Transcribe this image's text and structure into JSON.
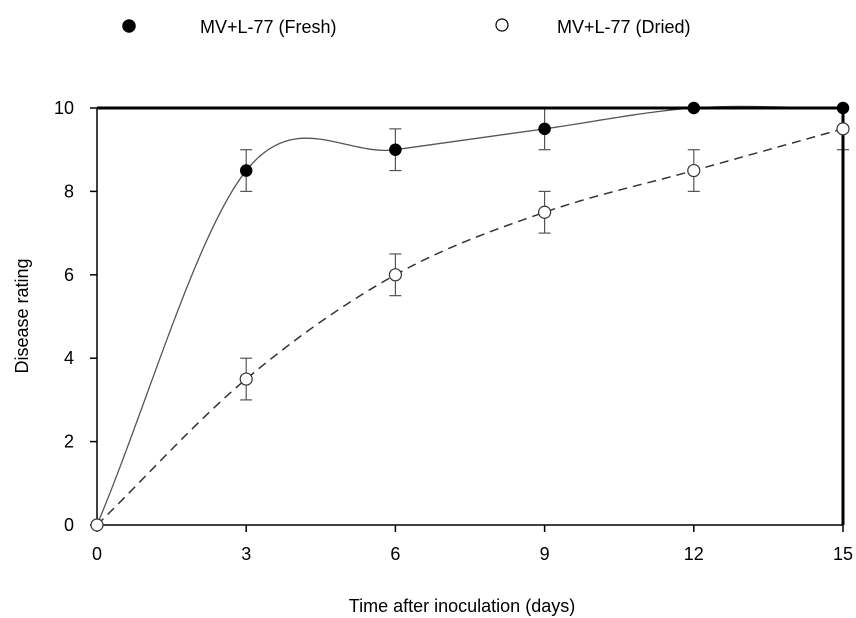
{
  "chart_data": {
    "type": "line",
    "xlabel": "Time after inoculation (days)",
    "ylabel": "Disease rating",
    "xlim": [
      0,
      15
    ],
    "ylim": [
      0,
      10
    ],
    "xticks": [
      0,
      3,
      6,
      9,
      12,
      15
    ],
    "yticks": [
      0,
      2,
      4,
      6,
      8,
      10
    ],
    "grid": false,
    "legend_position": "top",
    "series": [
      {
        "name": "MV+L-77 (Fresh)",
        "marker": "filled-circle",
        "line_style": "solid",
        "x": [
          0,
          3,
          6,
          9,
          12,
          15
        ],
        "y": [
          0,
          8.5,
          9.0,
          9.5,
          10.0,
          10.0
        ],
        "error": [
          0,
          0.5,
          0.5,
          0.5,
          0,
          0
        ]
      },
      {
        "name": "MV+L-77 (Dried)",
        "marker": "open-circle",
        "line_style": "dashed",
        "x": [
          0,
          3,
          6,
          9,
          12,
          15
        ],
        "y": [
          0,
          3.5,
          6.0,
          7.5,
          8.5,
          9.5
        ],
        "error": [
          0,
          0.5,
          0.5,
          0.5,
          0.5,
          0.5
        ]
      }
    ]
  }
}
